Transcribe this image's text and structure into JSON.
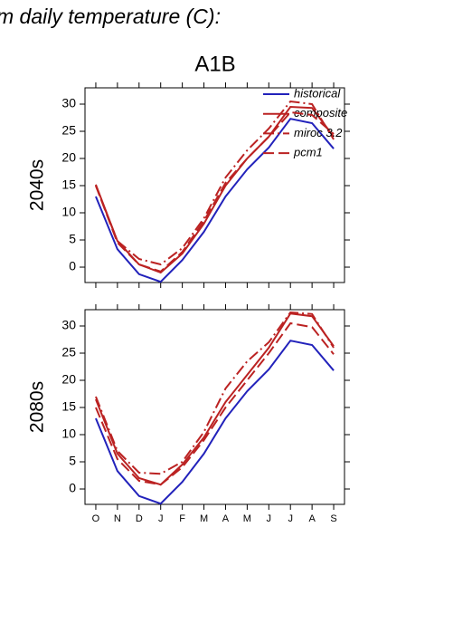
{
  "title": "m daily temperature (C):",
  "subtitle": "A1B",
  "chart_data": [
    {
      "type": "line",
      "ylabel": "2040s",
      "ylim": [
        -2.83,
        33
      ],
      "yticks": [
        0,
        5,
        10,
        15,
        20,
        25,
        30
      ],
      "legend": "upper right",
      "series": [
        {
          "name": "historical",
          "color": "#2222bb",
          "linestyle": "solid",
          "values": [
            13,
            3.3,
            -1.3,
            -2.7,
            1.3,
            6.5,
            13,
            18,
            22,
            27.3,
            26.5,
            21.8
          ]
        },
        {
          "name": "composite",
          "color": "#bb2222",
          "linestyle": "solid",
          "values": [
            15.2,
            4.8,
            0.5,
            -1,
            2.5,
            8,
            15,
            20,
            24,
            29.5,
            29.3,
            24
          ]
        },
        {
          "name": "miroc 3.2",
          "color": "#bb2222",
          "linestyle": "dashdot",
          "values": [
            15,
            4.8,
            1.5,
            0.5,
            3.5,
            9,
            16.5,
            21.5,
            25.5,
            30.5,
            30,
            23.5
          ]
        },
        {
          "name": "pcm1",
          "color": "#bb2222",
          "linestyle": "dashed",
          "values": [
            15,
            4.5,
            0.5,
            -0.8,
            2.8,
            8.5,
            15.5,
            20,
            24,
            28.5,
            28,
            24.5
          ]
        }
      ]
    },
    {
      "type": "line",
      "ylabel": "2080s",
      "ylim": [
        -2.83,
        33
      ],
      "yticks": [
        0,
        5,
        10,
        15,
        20,
        25,
        30
      ],
      "categories": [
        "O",
        "N",
        "D",
        "J",
        "F",
        "M",
        "A",
        "M",
        "J",
        "J",
        "A",
        "S"
      ],
      "series": [
        {
          "color": "#2222bb",
          "linestyle": "solid",
          "values": [
            13,
            3.3,
            -1.3,
            -2.7,
            1.3,
            6.5,
            13,
            18,
            22,
            27.3,
            26.5,
            21.8
          ]
        },
        {
          "color": "#bb2222",
          "linestyle": "solid",
          "values": [
            16.5,
            6.5,
            2,
            0.8,
            4.5,
            9.5,
            16,
            21,
            26,
            32.3,
            31.8,
            26.3
          ]
        },
        {
          "color": "#bb2222",
          "linestyle": "dashdot",
          "values": [
            17,
            7,
            3,
            2.8,
            5,
            10.5,
            18.5,
            23.5,
            27,
            32.5,
            32.2,
            26
          ]
        },
        {
          "color": "#bb2222",
          "linestyle": "dashed",
          "values": [
            15,
            5.5,
            1.5,
            0.8,
            4,
            9,
            15,
            20,
            25,
            30.5,
            29.8,
            24.8
          ]
        }
      ]
    }
  ]
}
